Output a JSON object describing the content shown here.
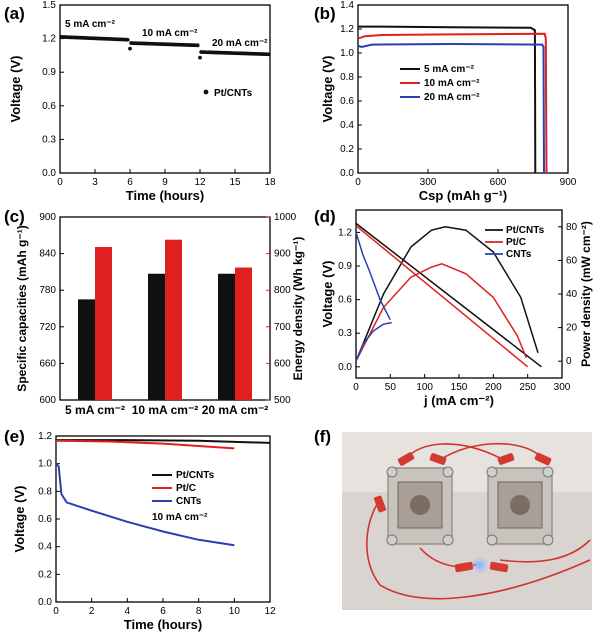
{
  "panels": {
    "a": "(a)",
    "b": "(b)",
    "c": "(c)",
    "d": "(d)",
    "e": "(e)",
    "f": "(f)"
  },
  "chart_data": [
    {
      "id": "a",
      "type": "scatter",
      "xlabel": "Time (hours)",
      "ylabel": "Voltage (V)",
      "xlim": [
        0,
        18
      ],
      "ylim": [
        0,
        1.5
      ],
      "xticks": [
        0,
        3,
        6,
        9,
        12,
        15,
        18
      ],
      "yticks": [
        0.0,
        0.3,
        0.6,
        0.9,
        1.2,
        1.5
      ],
      "legend": [
        {
          "name": "Pt/CNTs",
          "color": "#111111",
          "marker": "circle"
        }
      ],
      "annotations": [
        "5 mA cm⁻²",
        "10 mA cm⁻²",
        "20 mA cm⁻²"
      ],
      "segments": [
        {
          "x_start": 0.1,
          "x_end": 5.8,
          "y_start": 1.215,
          "y_end": 1.19
        },
        {
          "x_start": 6.1,
          "x_end": 11.8,
          "y_start": 1.16,
          "y_end": 1.14
        },
        {
          "x_start": 12.1,
          "x_end": 17.9,
          "y_start": 1.08,
          "y_end": 1.06
        }
      ],
      "outliers": [
        {
          "x": 6.0,
          "y": 1.11
        },
        {
          "x": 12.0,
          "y": 1.03
        }
      ]
    },
    {
      "id": "b",
      "type": "line",
      "xlabel": "Csp (mAh g⁻¹)",
      "ylabel": "Voltage (V)",
      "xlim": [
        0,
        900
      ],
      "ylim": [
        0,
        1.4
      ],
      "xticks": [
        0,
        300,
        600,
        900
      ],
      "yticks": [
        0.0,
        0.2,
        0.4,
        0.6,
        0.8,
        1.0,
        1.2,
        1.4
      ],
      "series": [
        {
          "name": "5 mA cm⁻²",
          "color": "#111111",
          "points": [
            [
              0,
              1.22
            ],
            [
              100,
              1.22
            ],
            [
              400,
              1.215
            ],
            [
              740,
              1.21
            ],
            [
              758,
              1.19
            ],
            [
              760,
              0
            ]
          ]
        },
        {
          "name": "10 mA cm⁻²",
          "color": "#e02020",
          "points": [
            [
              0,
              1.12
            ],
            [
              30,
              1.14
            ],
            [
              100,
              1.15
            ],
            [
              400,
              1.155
            ],
            [
              800,
              1.16
            ],
            [
              805,
              1.12
            ],
            [
              808,
              0
            ]
          ]
        },
        {
          "name": "20 mA cm⁻²",
          "color": "#2a3fb0",
          "points": [
            [
              0,
              1.06
            ],
            [
              15,
              1.05
            ],
            [
              60,
              1.07
            ],
            [
              400,
              1.075
            ],
            [
              790,
              1.07
            ],
            [
              795,
              1.05
            ],
            [
              797,
              0
            ]
          ]
        }
      ]
    },
    {
      "id": "c",
      "type": "bar",
      "categories": [
        "5 mA cm⁻²",
        "10 mA cm⁻²",
        "20 mA cm⁻²"
      ],
      "ylabel": "Specific capacities (mAh g⁻¹)",
      "ylabel_right": "Energy density (Wh kg⁻¹)",
      "ylim": [
        600,
        900
      ],
      "ylim_right": [
        500,
        1000
      ],
      "yticks": [
        600,
        660,
        720,
        780,
        840,
        900
      ],
      "yticks_right": [
        500,
        600,
        700,
        800,
        900,
        1000
      ],
      "series": [
        {
          "axis": "left",
          "color": "#111111",
          "values": [
            765,
            807,
            807
          ]
        },
        {
          "axis": "right",
          "color": "#e02020",
          "values": [
            918,
            938,
            862
          ]
        }
      ]
    },
    {
      "id": "d",
      "type": "line",
      "xlabel": "j (mA cm⁻²)",
      "ylabel": "Voltage (V)",
      "ylabel_right": "Power density (mW cm⁻²)",
      "xlim": [
        0,
        300
      ],
      "ylim": [
        -0.1,
        1.4
      ],
      "ylim_right": [
        -10,
        90
      ],
      "xticks": [
        0,
        50,
        100,
        150,
        200,
        250,
        300
      ],
      "yticks": [
        0.0,
        0.3,
        0.6,
        0.9,
        1.2
      ],
      "yticks_right": [
        0,
        20,
        40,
        60,
        80
      ],
      "series": [
        {
          "name": "Pt/CNTs",
          "color": "#111111",
          "voltage": [
            [
              0,
              1.28
            ],
            [
              270,
              0.0
            ]
          ],
          "power": [
            [
              0,
              0
            ],
            [
              40,
              40
            ],
            [
              80,
              68
            ],
            [
              110,
              78
            ],
            [
              130,
              80
            ],
            [
              160,
              78
            ],
            [
              200,
              65
            ],
            [
              240,
              38
            ],
            [
              265,
              5
            ]
          ]
        },
        {
          "name": "Pt/C",
          "color": "#e02020",
          "voltage": [
            [
              0,
              1.26
            ],
            [
              250,
              0.0
            ]
          ],
          "power": [
            [
              0,
              0
            ],
            [
              40,
              32
            ],
            [
              80,
              50
            ],
            [
              110,
              56
            ],
            [
              125,
              58
            ],
            [
              160,
              52
            ],
            [
              200,
              38
            ],
            [
              235,
              15
            ],
            [
              248,
              2
            ]
          ]
        },
        {
          "name": "CNTs",
          "color": "#2a3fb0",
          "voltage": [
            [
              0,
              1.2
            ],
            [
              10,
              1.0
            ],
            [
              20,
              0.85
            ],
            [
              35,
              0.6
            ],
            [
              50,
              0.42
            ]
          ],
          "power": [
            [
              0,
              0
            ],
            [
              10,
              10
            ],
            [
              25,
              18
            ],
            [
              40,
              22
            ],
            [
              52,
              23
            ]
          ]
        }
      ]
    },
    {
      "id": "e",
      "type": "line",
      "xlabel": "Time (hours)",
      "ylabel": "Voltage (V)",
      "xlim": [
        0,
        12
      ],
      "ylim": [
        0,
        1.2
      ],
      "xticks": [
        0,
        2,
        4,
        6,
        8,
        10,
        12
      ],
      "yticks": [
        0.0,
        0.2,
        0.4,
        0.6,
        0.8,
        1.0,
        1.2
      ],
      "annotation": "10 mA cm⁻²",
      "series": [
        {
          "name": "Pt/CNTs",
          "color": "#111111",
          "points": [
            [
              0,
              1.17
            ],
            [
              4,
              1.17
            ],
            [
              8,
              1.165
            ],
            [
              12,
              1.15
            ]
          ]
        },
        {
          "name": "Pt/C",
          "color": "#e02020",
          "points": [
            [
              0,
              1.165
            ],
            [
              3,
              1.16
            ],
            [
              6,
              1.145
            ],
            [
              10,
              1.11
            ]
          ]
        },
        {
          "name": "CNTs",
          "color": "#2a3fb0",
          "points": [
            [
              0,
              1.0
            ],
            [
              0.15,
              0.98
            ],
            [
              0.3,
              0.78
            ],
            [
              0.6,
              0.72
            ],
            [
              2,
              0.66
            ],
            [
              4,
              0.58
            ],
            [
              6,
              0.51
            ],
            [
              8,
              0.45
            ],
            [
              10,
              0.41
            ]
          ]
        }
      ]
    }
  ],
  "photo_f": {
    "description_hidden": false,
    "led_color": "#9ab8ff"
  }
}
